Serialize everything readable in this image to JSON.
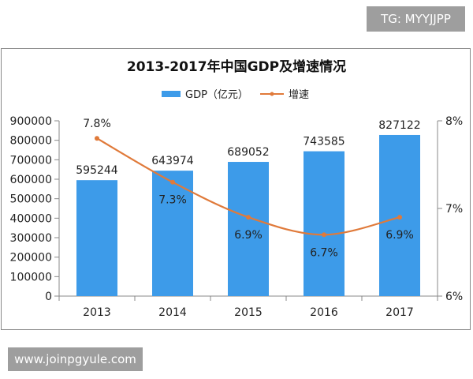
{
  "badges": {
    "top": "TG: MYYJJPP",
    "bottom": "www.joinpgyule.com"
  },
  "chart_data": {
    "type": "bar+line",
    "title": "2013-2017年中国GDP及增速情况",
    "categories": [
      "2013",
      "2014",
      "2015",
      "2016",
      "2017"
    ],
    "series": [
      {
        "name": "GDP（亿元）",
        "type": "bar",
        "axis": "left",
        "color": "#3d9be9",
        "values": [
          595244,
          643974,
          689052,
          743585,
          827122
        ],
        "labels": [
          "595244",
          "643974",
          "689052",
          "743585",
          "827122"
        ]
      },
      {
        "name": "增速",
        "type": "line",
        "axis": "right",
        "color": "#e07a3a",
        "values": [
          7.8,
          7.3,
          6.9,
          6.7,
          6.9
        ],
        "labels": [
          "7.8%",
          "7.3%",
          "6.9%",
          "6.7%",
          "6.9%"
        ]
      }
    ],
    "y_left": {
      "range": [
        0,
        900000
      ],
      "ticks": [
        "0",
        "100000",
        "200000",
        "300000",
        "400000",
        "500000",
        "600000",
        "700000",
        "800000",
        "900000"
      ]
    },
    "y_right": {
      "range": [
        6,
        8
      ],
      "ticks": [
        "6%",
        "7%",
        "8%"
      ]
    },
    "legend": "top",
    "grid": false
  }
}
